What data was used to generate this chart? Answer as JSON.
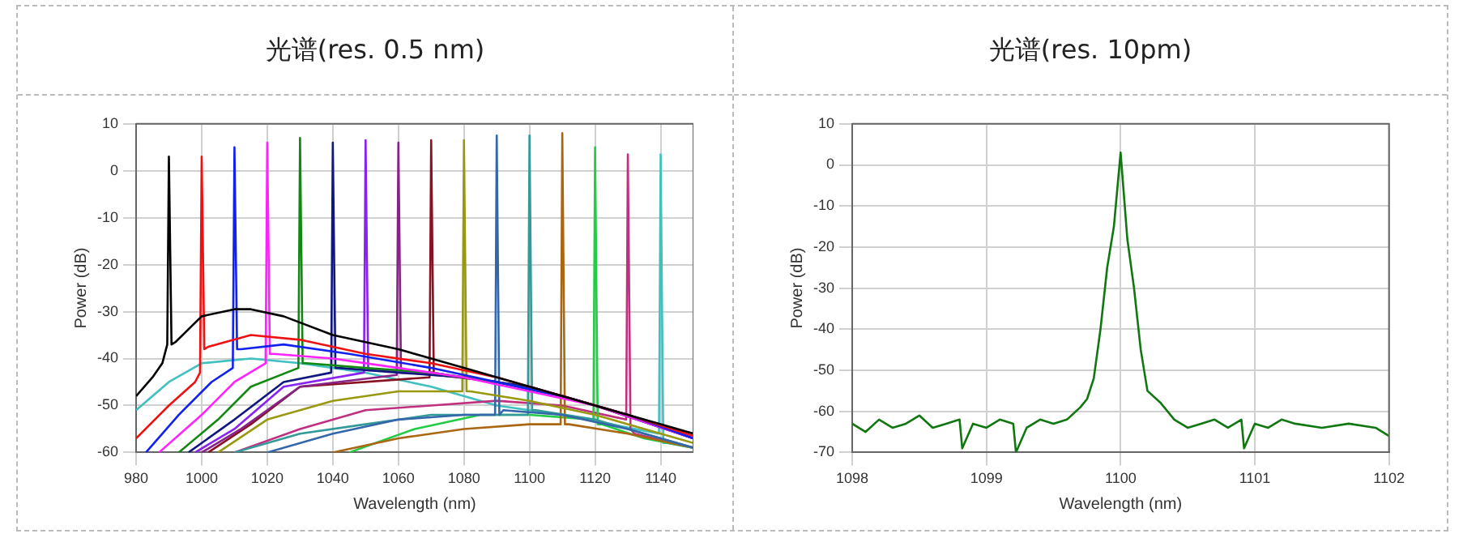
{
  "chart_data": [
    {
      "type": "line",
      "title": "光谱(res. 0.5 nm)",
      "xlabel": "Wavelength (nm)",
      "ylabel": "Power (dB)",
      "xlim": [
        980,
        1150
      ],
      "xticks": [
        980,
        1000,
        1020,
        1040,
        1060,
        1080,
        1100,
        1120,
        1140
      ],
      "ylim": [
        -60,
        10
      ],
      "yticks": [
        -60,
        -50,
        -40,
        -30,
        -20,
        -10,
        0,
        10
      ],
      "grid": true,
      "legend": false,
      "marker": "none",
      "line_style": "solid",
      "series": [
        {
          "color": "#000000",
          "x": [
            980,
            985,
            988,
            989.5,
            990,
            990.8,
            992,
            1000,
            1010,
            1015,
            1025,
            1040,
            1060,
            1080,
            1100,
            1120,
            1135,
            1150
          ],
          "values": [
            -48,
            -44,
            -41,
            -37,
            3,
            -37,
            -36.5,
            -31,
            -29.5,
            -29.5,
            -31,
            -35,
            -38,
            -42,
            -46,
            -50,
            -53,
            -56
          ]
        },
        {
          "color": "#ee1111",
          "x": [
            980,
            990,
            998,
            999.5,
            1000,
            1000.8,
            1002,
            1015,
            1030,
            1050,
            1070,
            1090,
            1110,
            1130,
            1150
          ],
          "values": [
            -57,
            -50,
            -45,
            -43,
            3,
            -38,
            -37.5,
            -35,
            -36,
            -39,
            -41,
            -44,
            -48,
            -52,
            -56.5
          ]
        },
        {
          "color": "#1122ee",
          "x": [
            983,
            993,
            1003,
            1009.5,
            1010,
            1010.8,
            1012,
            1025,
            1045,
            1070,
            1090,
            1110,
            1130,
            1150
          ],
          "values": [
            -60,
            -52,
            -45,
            -42,
            5,
            -38,
            -38,
            -37,
            -39,
            -42,
            -45,
            -48,
            -52,
            -57
          ]
        },
        {
          "color": "#ff22ff",
          "x": [
            987,
            1000,
            1010,
            1019.5,
            1020,
            1020.8,
            1022,
            1040,
            1060,
            1080,
            1100,
            1120,
            1150
          ],
          "values": [
            -60,
            -52,
            -45,
            -41,
            6,
            -39,
            -39,
            -40,
            -42,
            -44,
            -47,
            -50,
            -57
          ]
        },
        {
          "color": "#118811",
          "x": [
            993,
            1005,
            1015,
            1029.5,
            1030,
            1030.8,
            1032,
            1050,
            1070,
            1090,
            1110,
            1130,
            1150
          ],
          "values": [
            -60,
            -53,
            -46,
            -42,
            7,
            -41,
            -41,
            -42,
            -43,
            -45,
            -48,
            -52,
            -57
          ]
        },
        {
          "color": "#101880",
          "x": [
            996,
            1010,
            1025,
            1039.5,
            1040,
            1040.8,
            1042,
            1060,
            1080,
            1100,
            1120,
            1150
          ],
          "values": [
            -60,
            -53,
            -45,
            -43,
            6,
            -42,
            -42,
            -43,
            -44,
            -46,
            -50,
            -57
          ]
        },
        {
          "color": "#8822ee",
          "x": [
            998,
            1010,
            1025,
            1049.5,
            1050,
            1050.8,
            1052,
            1070,
            1090,
            1110,
            1130,
            1150
          ],
          "values": [
            -60,
            -55,
            -46,
            -43,
            6.5,
            -42.5,
            -42.5,
            -43,
            -45,
            -48,
            -52,
            -57
          ]
        },
        {
          "color": "#882288",
          "x": [
            1000,
            1012,
            1030,
            1059.5,
            1060,
            1060.8,
            1062,
            1080,
            1100,
            1120,
            1150
          ],
          "values": [
            -60,
            -55,
            -46,
            -43.5,
            6,
            -43,
            -43,
            -44,
            -46,
            -50,
            -57
          ]
        },
        {
          "color": "#881122",
          "x": [
            1002,
            1015,
            1030,
            1069.5,
            1070,
            1070.8,
            1072,
            1090,
            1110,
            1130,
            1150
          ],
          "values": [
            -60,
            -54,
            -46,
            -44,
            6.5,
            -43.5,
            -43.5,
            -45,
            -48,
            -52,
            -57
          ]
        },
        {
          "color": "#999911",
          "x": [
            1005,
            1020,
            1040,
            1060,
            1079.5,
            1080,
            1080.8,
            1082,
            1100,
            1120,
            1150
          ],
          "values": [
            -60,
            -53,
            -49,
            -47,
            -47,
            6.5,
            -47,
            -47,
            -49,
            -52,
            -58
          ]
        },
        {
          "color": "#3366aa",
          "x": [
            1020,
            1040,
            1060,
            1080,
            1089.5,
            1090,
            1090.8,
            1092,
            1110,
            1130,
            1150
          ],
          "values": [
            -60,
            -56,
            -53,
            -52,
            -52,
            7.5,
            -52,
            -51,
            -52,
            -55,
            -59
          ]
        },
        {
          "color": "#339999",
          "x": [
            1010,
            1030,
            1050,
            1070,
            1090,
            1099.5,
            1100,
            1100.8,
            1102,
            1120,
            1150
          ],
          "values": [
            -60,
            -56,
            -54,
            -52,
            -52,
            -52,
            7.5,
            -51,
            -51,
            -53,
            -59
          ]
        },
        {
          "color": "#aa6611",
          "x": [
            1040,
            1060,
            1080,
            1100,
            1109.5,
            1110,
            1110.8,
            1112,
            1130,
            1150
          ],
          "values": [
            -60,
            -57,
            -55,
            -54,
            -54,
            8,
            -54,
            -54,
            -56,
            -59
          ]
        },
        {
          "color": "#22cc44",
          "x": [
            1045,
            1065,
            1085,
            1100,
            1119.5,
            1120,
            1120.8,
            1122,
            1135,
            1150
          ],
          "values": [
            -60,
            -55,
            -52,
            -52,
            -53,
            5,
            -54,
            -54,
            -57,
            -59
          ]
        },
        {
          "color": "#c03080",
          "x": [
            1010,
            1030,
            1050,
            1070,
            1090,
            1110,
            1129.5,
            1130,
            1130.8,
            1132,
            1150
          ],
          "values": [
            -60,
            -55,
            -51,
            -50,
            -49,
            -50,
            -53,
            3.5,
            -55,
            -56,
            -59
          ]
        },
        {
          "color": "#40c0c0",
          "x": [
            980,
            990,
            1000,
            1015,
            1030,
            1050,
            1070,
            1090,
            1110,
            1125,
            1139.5,
            1140,
            1140.8,
            1142,
            1150
          ],
          "values": [
            -51,
            -45,
            -41,
            -40,
            -41,
            -43,
            -46,
            -50,
            -52,
            -54,
            -56,
            3.5,
            -58,
            -58,
            -59
          ]
        }
      ]
    },
    {
      "type": "line",
      "title": "光谱(res. 10pm)",
      "xlabel": "Wavelength (nm)",
      "ylabel": "Power (dB)",
      "xlim": [
        1098,
        1102
      ],
      "xticks": [
        1098,
        1099,
        1100,
        1101,
        1102
      ],
      "ylim": [
        -70,
        10
      ],
      "yticks": [
        -70,
        -60,
        -50,
        -40,
        -30,
        -20,
        -10,
        0,
        10
      ],
      "grid": true,
      "legend": false,
      "marker": "none",
      "line_style": "solid",
      "series": [
        {
          "color": "#117711",
          "x": [
            1098,
            1098.1,
            1098.2,
            1098.3,
            1098.4,
            1098.5,
            1098.6,
            1098.7,
            1098.8,
            1098.82,
            1098.9,
            1099,
            1099.1,
            1099.2,
            1099.22,
            1099.3,
            1099.4,
            1099.5,
            1099.6,
            1099.7,
            1099.75,
            1099.8,
            1099.85,
            1099.9,
            1099.95,
            1100,
            1100.05,
            1100.1,
            1100.15,
            1100.2,
            1100.3,
            1100.4,
            1100.5,
            1100.6,
            1100.7,
            1100.8,
            1100.9,
            1100.92,
            1101,
            1101.1,
            1101.2,
            1101.3,
            1101.5,
            1101.7,
            1101.9,
            1102
          ],
          "values": [
            -63,
            -65,
            -62,
            -64,
            -63,
            -61,
            -64,
            -63,
            -62,
            -69,
            -63,
            -64,
            -62,
            -63,
            -70,
            -64,
            -62,
            -63,
            -62,
            -59,
            -57,
            -52,
            -40,
            -25,
            -15,
            3,
            -18,
            -30,
            -45,
            -55,
            -58,
            -62,
            -64,
            -63,
            -62,
            -64,
            -62,
            -69,
            -63,
            -64,
            -62,
            -63,
            -64,
            -63,
            -64,
            -66
          ]
        }
      ]
    }
  ]
}
